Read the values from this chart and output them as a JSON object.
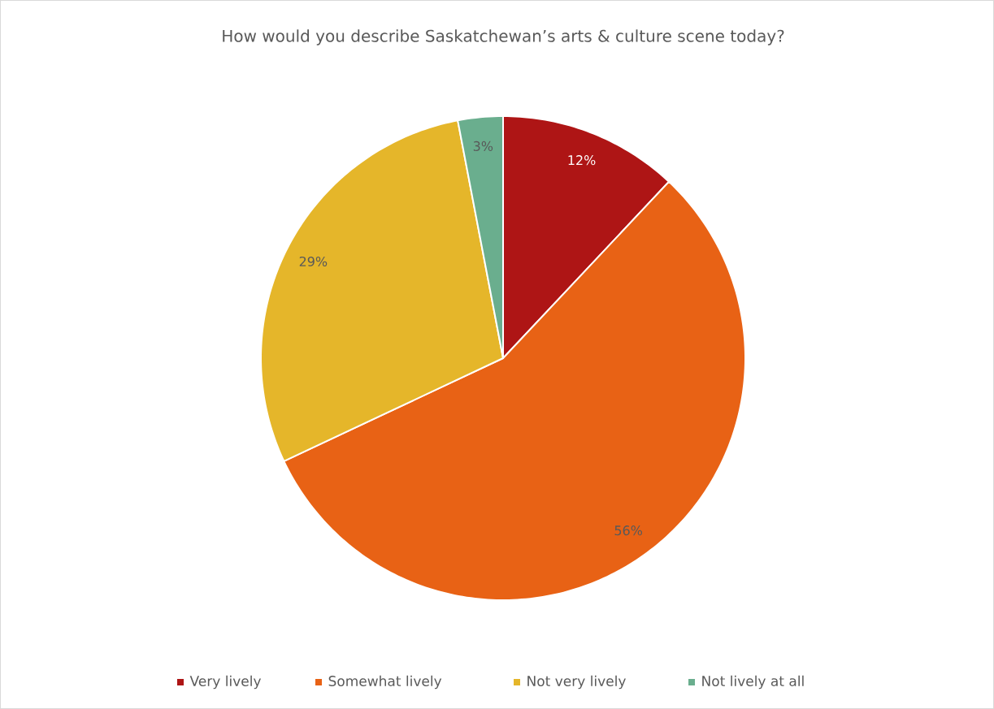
{
  "chart_data": {
    "type": "pie",
    "title": "How would you describe Saskatchewan’s arts & culture scene today?",
    "categories": [
      "Very lively",
      "Somewhat lively",
      "Not very lively",
      "Not lively at all"
    ],
    "values": [
      12,
      56,
      29,
      3
    ],
    "colors": [
      "#ae1515",
      "#e86215",
      "#e5b62a",
      "#6aae8e"
    ],
    "value_labels": [
      "12%",
      "56%",
      "29%",
      "3%"
    ],
    "legend": "bottom"
  }
}
